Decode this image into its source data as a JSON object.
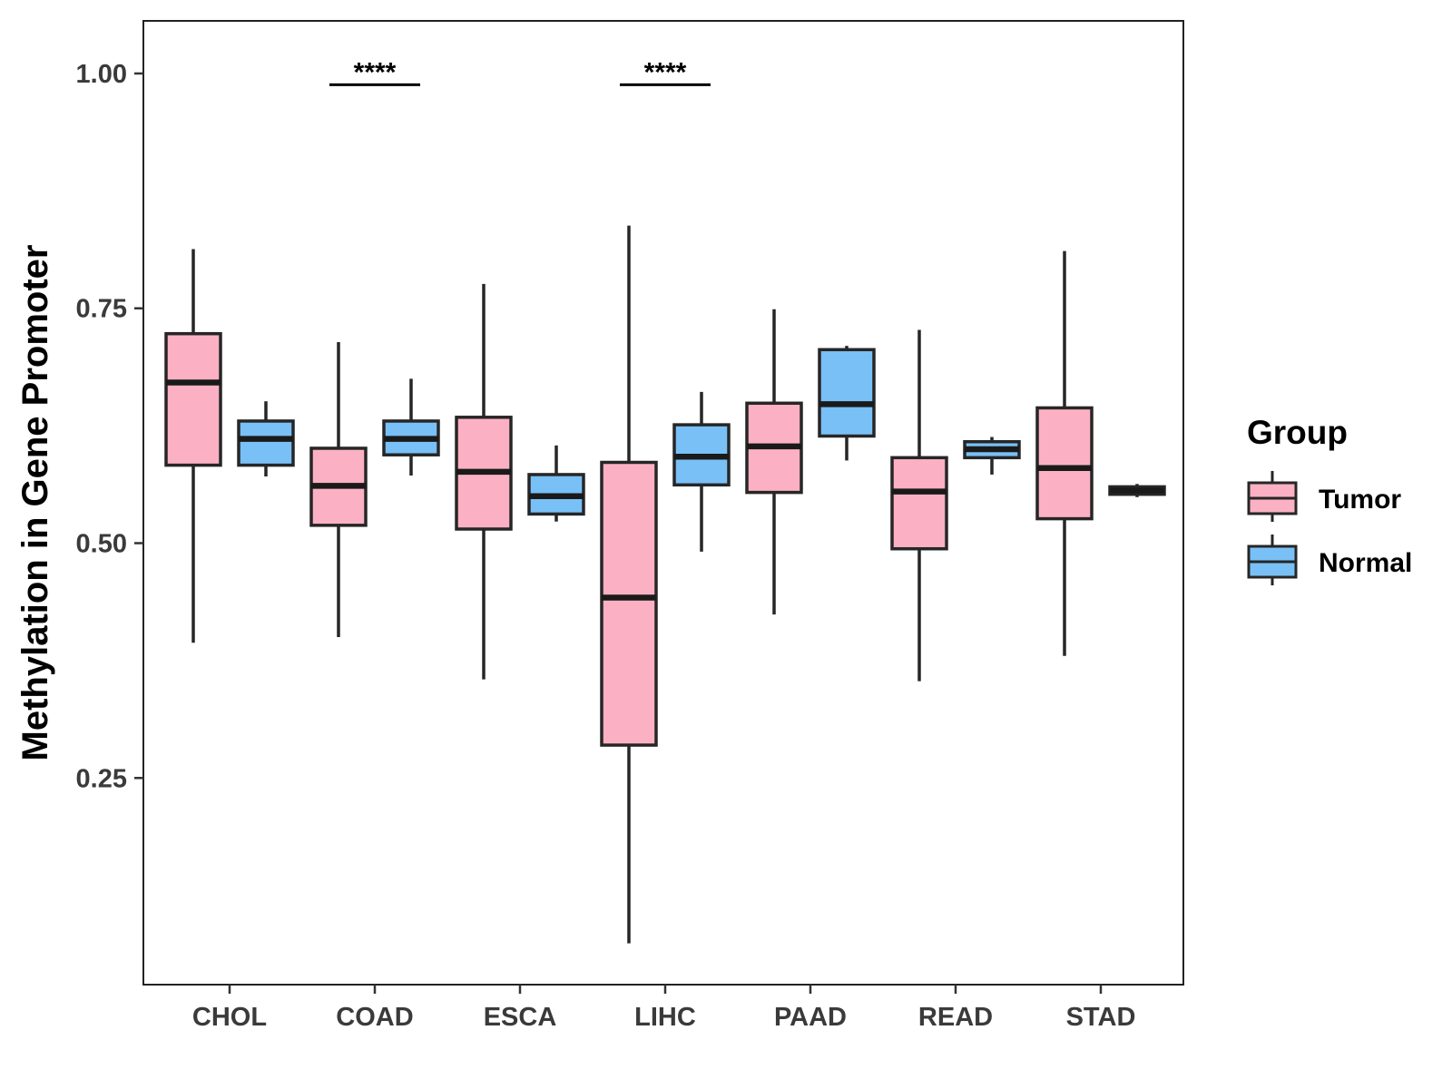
{
  "chart_data": {
    "type": "boxplot",
    "title": "",
    "xlabel": "",
    "ylabel": "Methylation in Gene Promoter",
    "ylim": [
      0.03,
      1.056
    ],
    "yticks": [
      0.25,
      0.5,
      0.75,
      1.0
    ],
    "ytick_labels": [
      "0.25",
      "0.50",
      "0.75",
      "1.00"
    ],
    "categories": [
      "CHOL",
      "COAD",
      "ESCA",
      "LIHC",
      "PAAD",
      "READ",
      "STAD"
    ],
    "legend": {
      "title": "Group",
      "position": "right",
      "entries": [
        {
          "name": "Tumor",
          "color": "#FBB1C3"
        },
        {
          "name": "Normal",
          "color": "#79C0F6"
        }
      ]
    },
    "series": [
      {
        "name": "Tumor",
        "color": "#FBB1C3",
        "boxes": [
          {
            "category": "CHOL",
            "min": 0.394,
            "q1": 0.583,
            "median": 0.671,
            "q3": 0.723,
            "max": 0.813
          },
          {
            "category": "COAD",
            "min": 0.4,
            "q1": 0.519,
            "median": 0.561,
            "q3": 0.601,
            "max": 0.714
          },
          {
            "category": "ESCA",
            "min": 0.355,
            "q1": 0.515,
            "median": 0.576,
            "q3": 0.634,
            "max": 0.776
          },
          {
            "category": "LIHC",
            "min": 0.074,
            "q1": 0.285,
            "median": 0.442,
            "q3": 0.586,
            "max": 0.838
          },
          {
            "category": "PAAD",
            "min": 0.424,
            "q1": 0.554,
            "median": 0.603,
            "q3": 0.649,
            "max": 0.749
          },
          {
            "category": "READ",
            "min": 0.353,
            "q1": 0.494,
            "median": 0.555,
            "q3": 0.591,
            "max": 0.727
          },
          {
            "category": "STAD",
            "min": 0.38,
            "q1": 0.526,
            "median": 0.58,
            "q3": 0.644,
            "max": 0.811
          }
        ]
      },
      {
        "name": "Normal",
        "color": "#79C0F6",
        "boxes": [
          {
            "category": "CHOL",
            "min": 0.571,
            "q1": 0.583,
            "median": 0.611,
            "q3": 0.63,
            "max": 0.651
          },
          {
            "category": "COAD",
            "min": 0.572,
            "q1": 0.594,
            "median": 0.611,
            "q3": 0.63,
            "max": 0.675
          },
          {
            "category": "ESCA",
            "min": 0.523,
            "q1": 0.531,
            "median": 0.55,
            "q3": 0.573,
            "max": 0.604
          },
          {
            "category": "LIHC",
            "min": 0.491,
            "q1": 0.562,
            "median": 0.592,
            "q3": 0.626,
            "max": 0.661
          },
          {
            "category": "PAAD",
            "min": 0.588,
            "q1": 0.614,
            "median": 0.648,
            "q3": 0.706,
            "max": 0.71
          },
          {
            "category": "READ",
            "min": 0.573,
            "q1": 0.591,
            "median": 0.6,
            "q3": 0.608,
            "max": 0.613
          },
          {
            "category": "STAD",
            "min": 0.549,
            "q1": 0.552,
            "median": 0.556,
            "q3": 0.56,
            "max": 0.563
          }
        ]
      }
    ],
    "annotations": [
      {
        "category": "COAD",
        "text": "****",
        "y": 0.988
      },
      {
        "category": "LIHC",
        "text": "****",
        "y": 0.988
      }
    ]
  }
}
